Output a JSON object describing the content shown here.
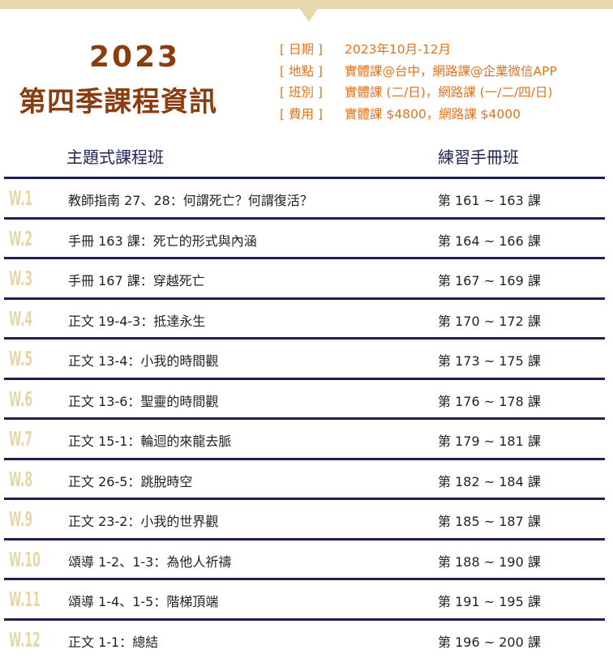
{
  "header": {
    "year": "2023",
    "season_title": "第四季課程資訊",
    "info": [
      {
        "key": "[ 日期 ]",
        "value": "2023年10月-12月"
      },
      {
        "key": "[ 地點 ]",
        "value": "實體課@台中，網路課@企業微信APP"
      },
      {
        "key": "[ 班別 ]",
        "value": "實體課 (二/日)，網路課 (一/二/四/日)"
      },
      {
        "key": "[ 費用 ]",
        "value": "實體課 $4800，網路課 $4000"
      }
    ]
  },
  "columns": {
    "left": "主題式課程班",
    "right": "練習手冊班"
  },
  "rows": [
    {
      "week": "W.1",
      "topic": "教師指南 27、28：何謂死亡？何謂復活？",
      "lessons": "第 161 ~ 163 課"
    },
    {
      "week": "W.2",
      "topic": "手冊 163 課：死亡的形式與內涵",
      "lessons": "第 164 ~ 166 課"
    },
    {
      "week": "W.3",
      "topic": "手冊 167 課：穿越死亡",
      "lessons": "第 167 ~ 169 課"
    },
    {
      "week": "W.4",
      "topic": "正文 19-4-3：抵達永生",
      "lessons": "第 170 ~ 172 課"
    },
    {
      "week": "W.5",
      "topic": "正文 13-4：小我的時間觀",
      "lessons": "第 173 ~ 175 課"
    },
    {
      "week": "W.6",
      "topic": "正文 13-6：聖靈的時間觀",
      "lessons": "第 176 ~ 178 課"
    },
    {
      "week": "W.7",
      "topic": "正文 15-1：輪迴的來龍去脈",
      "lessons": "第 179 ~ 181 課"
    },
    {
      "week": "W.8",
      "topic": "正文 26-5：跳脫時空",
      "lessons": "第 182 ~ 184 課"
    },
    {
      "week": "W.9",
      "topic": "正文 23-2：小我的世界觀",
      "lessons": "第 185 ~ 187 課"
    },
    {
      "week": "W.10",
      "topic": "頌導 1-2、1-3：為他人祈禱",
      "lessons": "第 188 ~ 190 課"
    },
    {
      "week": "W.11",
      "topic": "頌導 1-4、1-5：階梯頂端",
      "lessons": "第 191 ~ 195 課"
    },
    {
      "week": "W.12",
      "topic": "正文 1-1：總結",
      "lessons": "第 196 ~ 200 課"
    }
  ]
}
